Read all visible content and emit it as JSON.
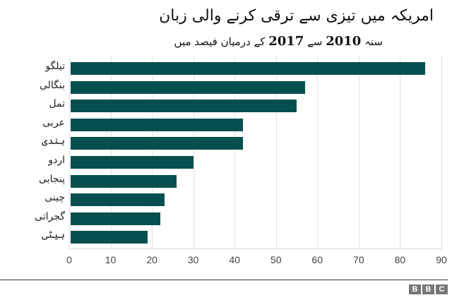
{
  "title": "امریکہ میں تیزی سے ترقی کرنے والی زبان",
  "subtitle": {
    "prefix": "سنہ",
    "year_start": "2010",
    "mid": "سے",
    "year_end": "2017",
    "suffix": "کے درمیان فیصد میں"
  },
  "logo": [
    "B",
    "B",
    "C"
  ],
  "style": {
    "bar_color": "#064f4f",
    "grid_color": "#e2e2e2"
  },
  "chart_data": {
    "type": "bar",
    "orientation": "horizontal",
    "title": "امریکہ میں تیزی سے ترقی کرنے والی زبان",
    "subtitle": "سنہ 2010 سے 2017 کے درمیان فیصد میں",
    "categories": [
      "تیلگو",
      "بنگالی",
      "تمل",
      "عربی",
      "ہندی",
      "اردو",
      "پنجابی",
      "چینی",
      "گجراتی",
      "ہیٹی"
    ],
    "values": [
      86,
      57,
      55,
      42,
      42,
      30,
      26,
      23,
      22,
      19
    ],
    "xlabel": "",
    "ylabel": "",
    "xlim": [
      0,
      90
    ],
    "xticks": [
      "0",
      "10",
      "20",
      "30",
      "40",
      "50",
      "60",
      "70",
      "80",
      "90"
    ],
    "grid": true,
    "legend": null
  }
}
